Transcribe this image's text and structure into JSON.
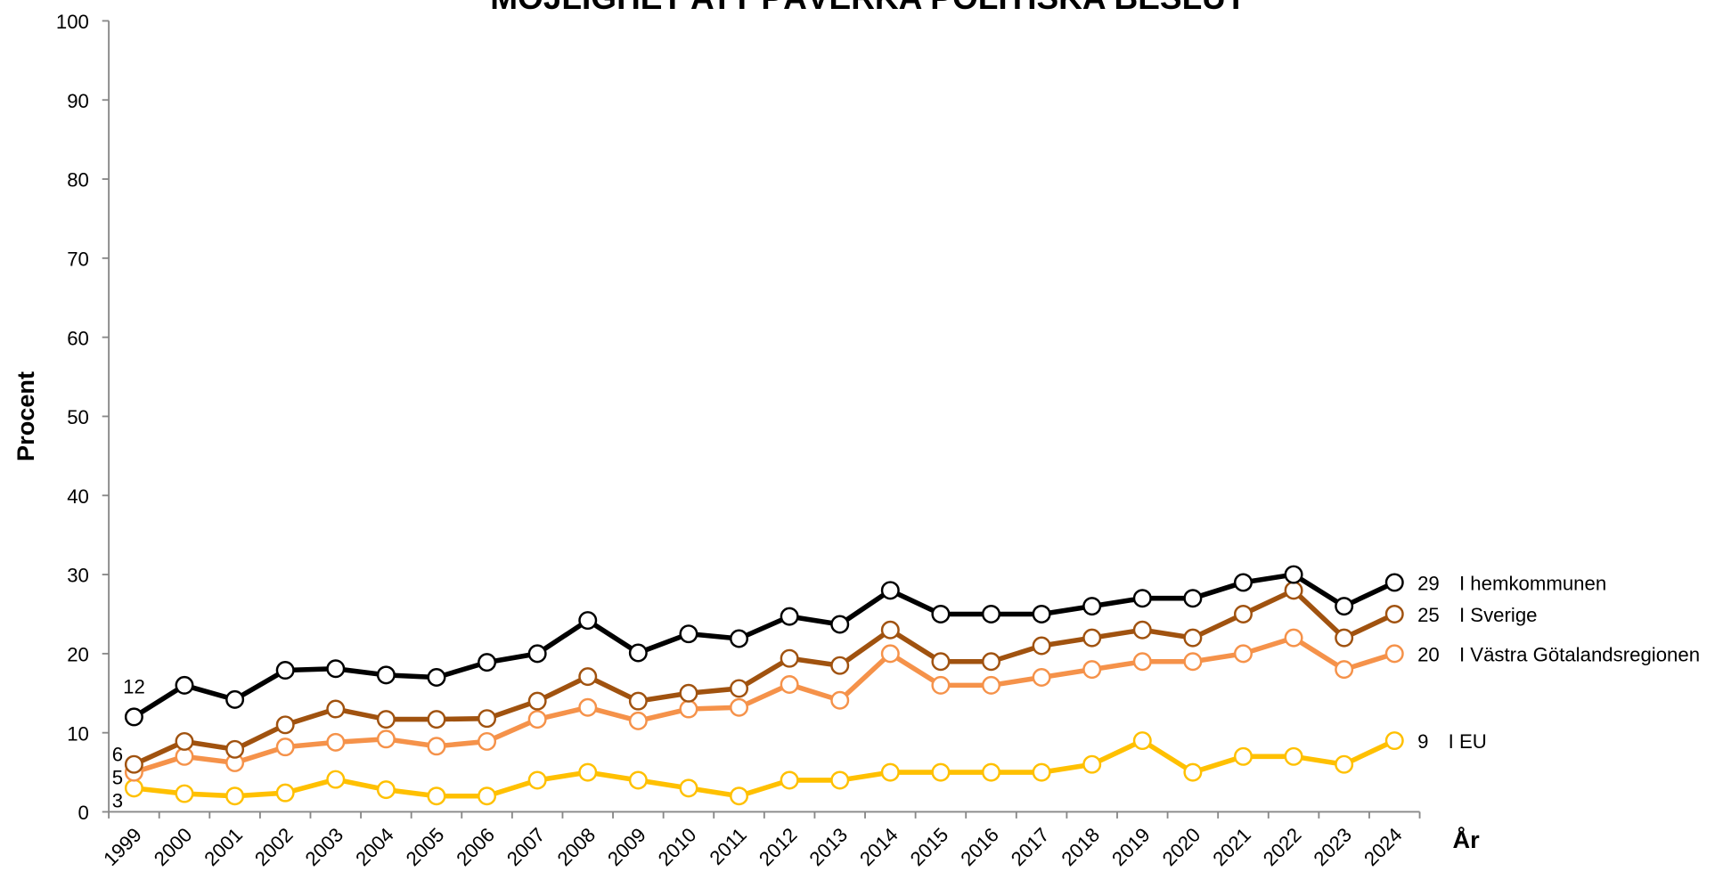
{
  "chart_data": {
    "type": "line",
    "title": "MÖJLIGHET ATT PÅVERKA POLITISKA BESLUT",
    "y_label": "Procent",
    "x_label": "År",
    "categories": [
      "1999",
      "2000",
      "2001",
      "2002",
      "2003",
      "2004",
      "2005",
      "2006",
      "2007",
      "2008",
      "2009",
      "2010",
      "2011",
      "2012",
      "2013",
      "2014",
      "2015",
      "2016",
      "2017",
      "2018",
      "2019",
      "2020",
      "2021",
      "2022",
      "2023",
      "2024"
    ],
    "series": [
      {
        "name": "I hemkommunen",
        "color": "#000000",
        "values": [
          12,
          16,
          14.2,
          17.9,
          18.1,
          17.3,
          17,
          18.9,
          20,
          24.2,
          20.1,
          22.5,
          21.9,
          24.7,
          23.7,
          28,
          25,
          25,
          25,
          26,
          27,
          27,
          29,
          30,
          26,
          29
        ]
      },
      {
        "name": "I Sverige",
        "color": "#a0520f",
        "values": [
          6,
          8.9,
          7.9,
          11,
          13,
          11.7,
          11.7,
          11.8,
          14,
          17.1,
          14,
          15,
          15.6,
          19.4,
          18.5,
          23,
          19,
          19,
          21,
          22,
          23,
          22,
          25,
          28,
          22,
          25
        ]
      },
      {
        "name": "I Västra Götalandsregionen",
        "color": "#f5924a",
        "values": [
          5,
          7,
          6.2,
          8.2,
          8.8,
          9.2,
          8.3,
          8.9,
          11.7,
          13.2,
          11.5,
          13,
          13.2,
          16.1,
          14.1,
          20,
          16,
          16,
          17,
          18,
          19,
          19,
          20,
          22,
          18,
          20
        ]
      },
      {
        "name": "I EU",
        "color": "#ffc000",
        "values": [
          3,
          2.3,
          2,
          2.4,
          4.1,
          2.8,
          2,
          2,
          4,
          5,
          4,
          3,
          2,
          4,
          4,
          5,
          5,
          5,
          5,
          6,
          9,
          5,
          7,
          7,
          6,
          9
        ]
      }
    ],
    "ylim": [
      0,
      100
    ],
    "yticks": [
      0,
      10,
      20,
      30,
      40,
      50,
      60,
      70,
      80,
      90,
      100
    ]
  }
}
